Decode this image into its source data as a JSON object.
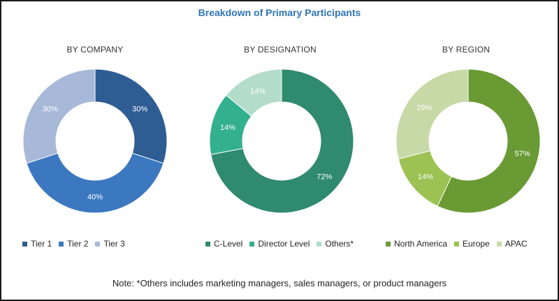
{
  "title": "Breakdown of Primary Participants",
  "note": "Note: *Others includes marketing managers, sales managers, or product managers",
  "chart_data": [
    {
      "type": "pie",
      "title": "BY COMPANY",
      "categories": [
        "Tier 1",
        "Tier 2",
        "Tier 3"
      ],
      "values": [
        30,
        40,
        30
      ],
      "labels": [
        "30%",
        "40%",
        "30%"
      ],
      "colors": [
        "#2e5d94",
        "#3c78c0",
        "#a8b8d8"
      ]
    },
    {
      "type": "pie",
      "title": "BY DESIGNATION",
      "categories": [
        "C-Level",
        "Director Level",
        "Others*"
      ],
      "values": [
        72,
        14,
        14
      ],
      "labels": [
        "72%",
        "14%",
        "14%"
      ],
      "colors": [
        "#2f8a6e",
        "#33b08d",
        "#b3dccb"
      ]
    },
    {
      "type": "pie",
      "title": "BY REGION",
      "categories": [
        "North America",
        "Europe",
        "APAC"
      ],
      "values": [
        57,
        14,
        29
      ],
      "labels": [
        "57%",
        "14%",
        "29%"
      ],
      "colors": [
        "#6a9a34",
        "#9bc252",
        "#c7d9a6"
      ]
    }
  ]
}
